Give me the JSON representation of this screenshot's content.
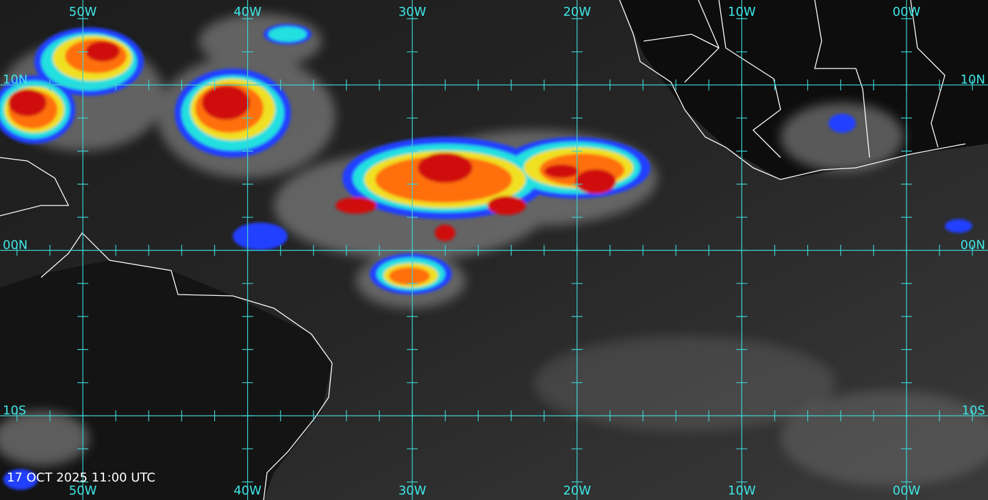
{
  "map": {
    "longitude_labels": [
      "50W",
      "40W",
      "30W",
      "20W",
      "10W",
      "00W"
    ],
    "latitude_labels": [
      "10N",
      "00N",
      "10S"
    ],
    "timestamp": "17 OCT 2025 11:00 UTC"
  }
}
